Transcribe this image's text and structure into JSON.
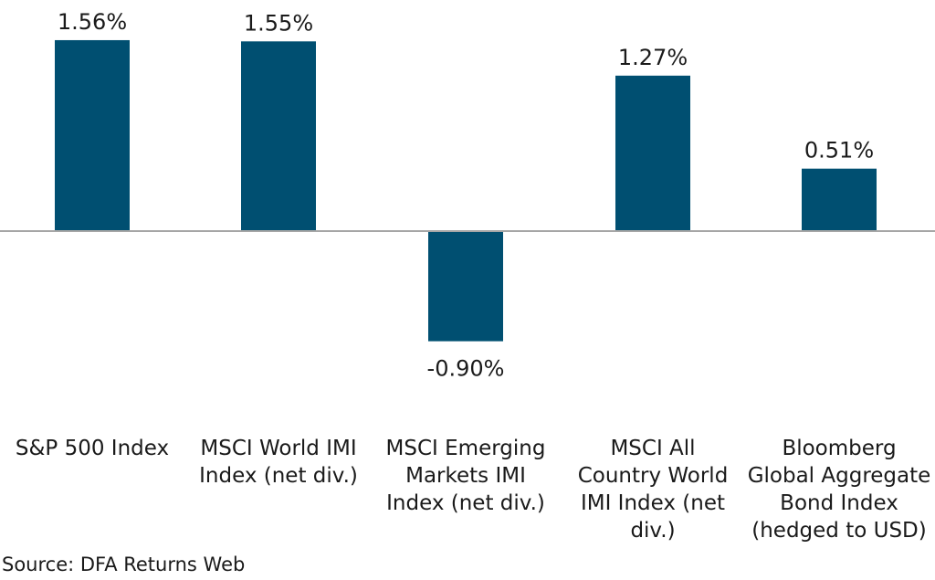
{
  "chart_data": {
    "type": "bar",
    "categories": [
      "S&P 500 Index",
      "MSCI World IMI\nIndex (net div.)",
      "MSCI Emerging\nMarkets IMI\nIndex (net div.)",
      "MSCI All\nCountry World\nIMI Index (net\ndiv.)",
      "Bloomberg\nGlobal Aggregate\nBond Index\n(hedged to USD)"
    ],
    "values": [
      1.56,
      1.55,
      -0.9,
      1.27,
      0.51
    ],
    "value_labels": [
      "1.56%",
      "1.55%",
      "-0.90%",
      "1.27%",
      "0.51%"
    ],
    "ylim": [
      -0.9,
      1.56
    ],
    "bar_color": "#004f71",
    "axis_color": "#a6a6a6",
    "grid": false
  },
  "source": "Source: DFA Returns Web"
}
